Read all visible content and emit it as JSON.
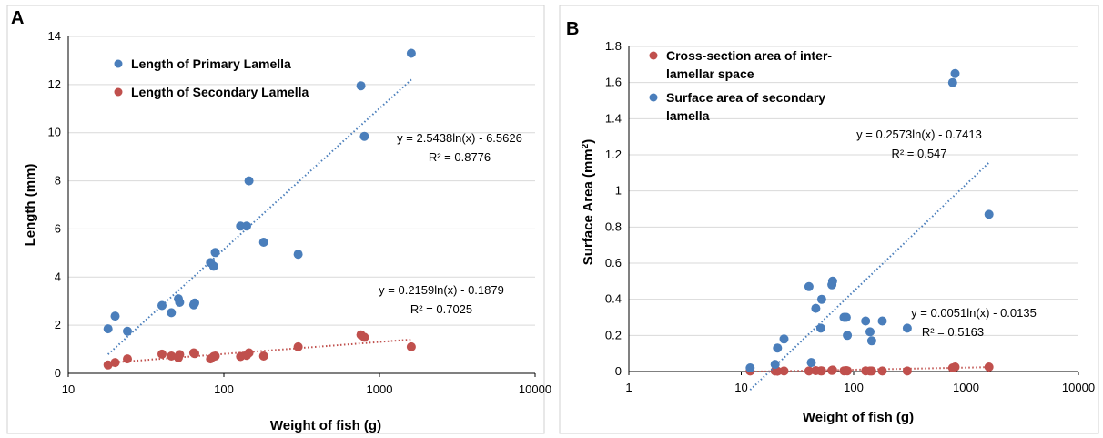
{
  "chart_data": [
    {
      "type": "scatter",
      "panel_label": "A",
      "xlabel": "Weight of fish (g)",
      "ylabel": "Length (mm)",
      "x_scale": "log",
      "xlim": [
        10,
        10000
      ],
      "ylim": [
        0,
        14
      ],
      "x_ticks": [
        "10",
        "100",
        "1000",
        "10000"
      ],
      "y_ticks": [
        "0",
        "2",
        "4",
        "6",
        "8",
        "10",
        "12",
        "14"
      ],
      "grid": "horizontal",
      "legend_position": "top-left",
      "series": [
        {
          "name": "Length of Primary Lamella",
          "color": "#4a7ebb",
          "points": [
            [
              18,
              1.85
            ],
            [
              20,
              2.38
            ],
            [
              24,
              1.75
            ],
            [
              40,
              2.82
            ],
            [
              46,
              2.52
            ],
            [
              51,
              3.1
            ],
            [
              52,
              2.95
            ],
            [
              64,
              2.85
            ],
            [
              65,
              2.92
            ],
            [
              82,
              4.6
            ],
            [
              86,
              4.45
            ],
            [
              88,
              5.02
            ],
            [
              128,
              6.12
            ],
            [
              140,
              6.12
            ],
            [
              145,
              8.0
            ],
            [
              180,
              5.45
            ],
            [
              300,
              4.95
            ],
            [
              760,
              11.95
            ],
            [
              800,
              9.85
            ],
            [
              1600,
              13.3
            ]
          ],
          "trend": {
            "a": 2.5438,
            "b": -6.5626,
            "x_from": 18,
            "x_to": 1600
          },
          "equation": "y = 2.5438ln(x) - 6.5626",
          "r2": "R² = 0.8776"
        },
        {
          "name": "Length of Secondary Lamella",
          "color": "#c0504d",
          "points": [
            [
              18,
              0.35
            ],
            [
              20,
              0.45
            ],
            [
              24,
              0.6
            ],
            [
              40,
              0.8
            ],
            [
              46,
              0.72
            ],
            [
              51,
              0.65
            ],
            [
              52,
              0.78
            ],
            [
              64,
              0.85
            ],
            [
              65,
              0.82
            ],
            [
              82,
              0.6
            ],
            [
              86,
              0.7
            ],
            [
              88,
              0.72
            ],
            [
              128,
              0.7
            ],
            [
              140,
              0.75
            ],
            [
              145,
              0.85
            ],
            [
              180,
              0.72
            ],
            [
              300,
              1.1
            ],
            [
              760,
              1.6
            ],
            [
              800,
              1.5
            ],
            [
              1600,
              1.1
            ]
          ],
          "trend": {
            "a": 0.2159,
            "b": -0.1879,
            "x_from": 18,
            "x_to": 1600
          },
          "equation": "y = 0.2159ln(x) - 0.1879",
          "r2": "R² = 0.7025"
        }
      ]
    },
    {
      "type": "scatter",
      "panel_label": "B",
      "xlabel": "Weight of fish (g)",
      "ylabel": "Surface Area (mm²)",
      "x_scale": "log",
      "xlim": [
        1,
        10000
      ],
      "ylim": [
        0,
        1.8
      ],
      "x_ticks": [
        "1",
        "10",
        "100",
        "1000",
        "10000"
      ],
      "y_ticks": [
        "0",
        "0.2",
        "0.4",
        "0.6",
        "0.8",
        "1",
        "1.2",
        "1.4",
        "1.6",
        "1.8"
      ],
      "grid": "horizontal",
      "legend_position": "top-left",
      "series": [
        {
          "name": "Cross-section area of inter-lamellar space",
          "color": "#c0504d",
          "points": [
            [
              12,
              0.003
            ],
            [
              20,
              0.003
            ],
            [
              21,
              0.002
            ],
            [
              24,
              0.003
            ],
            [
              40,
              0.003
            ],
            [
              46,
              0.005
            ],
            [
              51,
              0.004
            ],
            [
              52,
              0.004
            ],
            [
              64,
              0.006
            ],
            [
              65,
              0.008
            ],
            [
              82,
              0.004
            ],
            [
              86,
              0.005
            ],
            [
              88,
              0.004
            ],
            [
              128,
              0.004
            ],
            [
              140,
              0.003
            ],
            [
              145,
              0.003
            ],
            [
              180,
              0.003
            ],
            [
              300,
              0.003
            ],
            [
              760,
              0.02
            ],
            [
              800,
              0.025
            ],
            [
              1600,
              0.025
            ]
          ],
          "trend": {
            "a": 0.0051,
            "b": -0.0135,
            "x_from": 12,
            "x_to": 1600
          },
          "equation": "y = 0.0051ln(x) - 0.0135",
          "r2": "R² = 0.5163"
        },
        {
          "name": "Surface area of secondary lamella",
          "color": "#4a7ebb",
          "points": [
            [
              12,
              0.02
            ],
            [
              20,
              0.04
            ],
            [
              21,
              0.13
            ],
            [
              24,
              0.18
            ],
            [
              40,
              0.47
            ],
            [
              42,
              0.05
            ],
            [
              46,
              0.35
            ],
            [
              51,
              0.24
            ],
            [
              52,
              0.4
            ],
            [
              64,
              0.48
            ],
            [
              65,
              0.5
            ],
            [
              82,
              0.3
            ],
            [
              86,
              0.3
            ],
            [
              88,
              0.2
            ],
            [
              128,
              0.28
            ],
            [
              140,
              0.22
            ],
            [
              145,
              0.17
            ],
            [
              180,
              0.28
            ],
            [
              300,
              0.24
            ],
            [
              760,
              1.6
            ],
            [
              800,
              1.65
            ],
            [
              1600,
              0.87
            ]
          ],
          "trend": {
            "a": 0.2573,
            "b": -0.7413,
            "x_from": 12,
            "x_to": 1600
          },
          "equation": "y = 0.2573ln(x) - 0.7413",
          "r2": "R² = 0.547"
        }
      ]
    }
  ]
}
